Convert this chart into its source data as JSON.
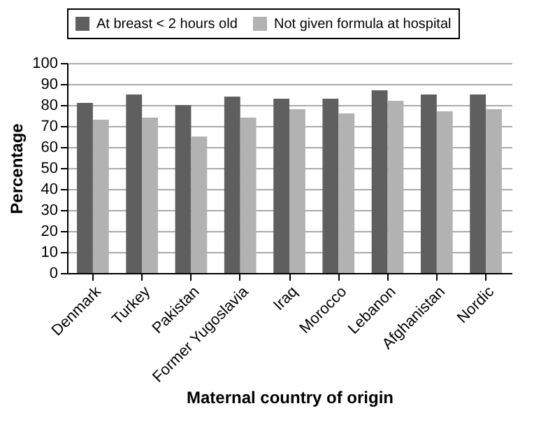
{
  "chart_data": {
    "type": "bar",
    "xlabel": "Maternal country of origin",
    "ylabel": "Percentage",
    "categories": [
      "Denmark",
      "Turkey",
      "Pakistan",
      "Former Yugoslavia",
      "Iraq",
      "Morocco",
      "Lebanon",
      "Afghanistan",
      "Nordic"
    ],
    "series": [
      {
        "name": "At breast < 2 hours old",
        "color": "#5f5f5f",
        "values": [
          81,
          85,
          80,
          84,
          83,
          83,
          87,
          85,
          85
        ]
      },
      {
        "name": "Not given formula at hospital",
        "color": "#b2b2b2",
        "values": [
          73,
          74,
          65,
          74,
          78,
          76,
          82,
          77,
          78
        ]
      }
    ],
    "ylim": [
      0,
      100
    ],
    "yticks": [
      0,
      10,
      20,
      30,
      40,
      50,
      60,
      70,
      80,
      90,
      100
    ],
    "grid": "y",
    "legend": "top"
  }
}
